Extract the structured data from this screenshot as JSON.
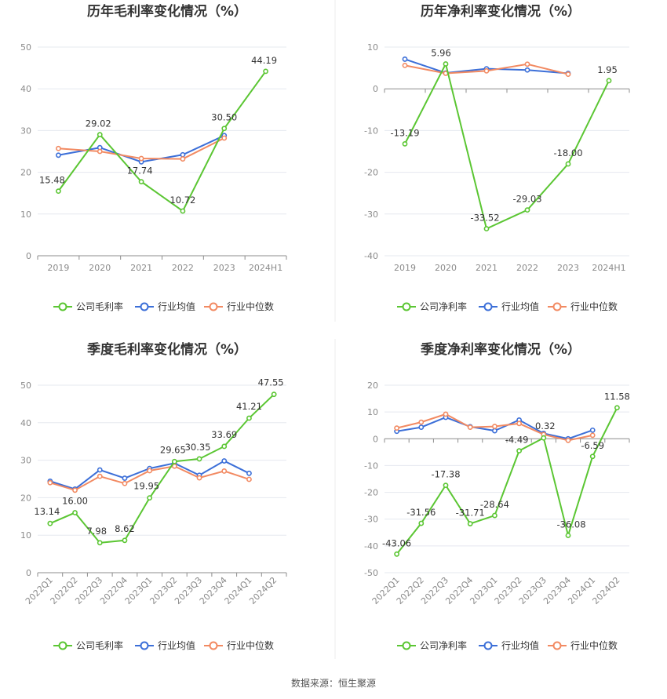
{
  "colors": {
    "company": "#5bc633",
    "avg": "#3c6fd8",
    "median": "#f28a62",
    "grid": "#e5e8ef",
    "axis": "#8c8c8c"
  },
  "legend_labels": {
    "gross": [
      "公司毛利率",
      "行业均值",
      "行业中位数"
    ],
    "net": [
      "公司净利率",
      "行业均值",
      "行业中位数"
    ]
  },
  "source": "数据来源：恒生聚源",
  "chart_data": [
    {
      "type": "line",
      "title": "历年毛利率变化情况（%）",
      "categories": [
        "2019",
        "2020",
        "2021",
        "2022",
        "2023",
        "2024H1"
      ],
      "ylim": [
        0,
        50
      ],
      "yticks": [
        0,
        10,
        20,
        30,
        40,
        50
      ],
      "rotate_labels": false,
      "legend_position": "bottom",
      "series": [
        {
          "name": "公司毛利率",
          "role": "company",
          "values": [
            15.48,
            29.02,
            17.74,
            10.72,
            30.5,
            44.19
          ],
          "labels": [
            "15.48",
            "29.02",
            "17.74",
            "10.72",
            "30.50",
            "44.19"
          ]
        },
        {
          "name": "行业均值",
          "role": "avg",
          "values": [
            24.1,
            25.9,
            22.5,
            24.2,
            28.8,
            null
          ]
        },
        {
          "name": "行业中位数",
          "role": "median",
          "values": [
            25.7,
            25.0,
            23.3,
            23.2,
            28.2,
            null
          ]
        }
      ]
    },
    {
      "type": "line",
      "title": "历年净利率变化情况（%）",
      "categories": [
        "2019",
        "2020",
        "2021",
        "2022",
        "2023",
        "2024H1"
      ],
      "ylim": [
        -40,
        10
      ],
      "yticks": [
        -40,
        -30,
        -20,
        -10,
        0,
        10
      ],
      "rotate_labels": false,
      "legend_position": "bottom",
      "series": [
        {
          "name": "公司净利率",
          "role": "company",
          "values": [
            -13.19,
            5.96,
            -33.52,
            -29.03,
            -18.0,
            1.95
          ],
          "labels": [
            "-13.19",
            "5.96",
            "-33.52",
            "-29.03",
            "-18.00",
            "1.95"
          ]
        },
        {
          "name": "行业均值",
          "role": "avg",
          "values": [
            7.1,
            3.8,
            4.8,
            4.5,
            3.7,
            null
          ]
        },
        {
          "name": "行业中位数",
          "role": "median",
          "values": [
            5.6,
            3.7,
            4.3,
            5.9,
            3.5,
            null
          ]
        }
      ]
    },
    {
      "type": "line",
      "title": "季度毛利率变化情况（%）",
      "categories": [
        "2022Q1",
        "2022Q2",
        "2022Q3",
        "2022Q4",
        "2023Q1",
        "2023Q2",
        "2023Q3",
        "2023Q4",
        "2024Q1",
        "2024Q2"
      ],
      "ylim": [
        0,
        50
      ],
      "yticks": [
        0,
        10,
        20,
        30,
        40,
        50
      ],
      "rotate_labels": true,
      "legend_position": "bottom",
      "series": [
        {
          "name": "公司毛利率",
          "role": "company",
          "values": [
            13.14,
            16.0,
            7.98,
            8.62,
            19.95,
            29.65,
            30.35,
            33.69,
            41.21,
            47.55
          ],
          "labels": [
            "13.14",
            "16.00",
            "7.98",
            "8.62",
            "19.95",
            "29.65",
            "30.35",
            "33.69",
            "41.21",
            "47.55"
          ]
        },
        {
          "name": "行业均值",
          "role": "avg",
          "values": [
            24.4,
            22.3,
            27.4,
            25.2,
            27.8,
            29.2,
            26.0,
            29.8,
            26.5,
            null
          ]
        },
        {
          "name": "行业中位数",
          "role": "median",
          "values": [
            24.0,
            22.0,
            25.7,
            23.8,
            27.2,
            28.4,
            25.3,
            27.1,
            24.9,
            null
          ]
        }
      ]
    },
    {
      "type": "line",
      "title": "季度净利率变化情况（%）",
      "categories": [
        "2022Q1",
        "2022Q2",
        "2022Q3",
        "2022Q4",
        "2023Q1",
        "2023Q2",
        "2023Q3",
        "2023Q4",
        "2024Q1",
        "2024Q2"
      ],
      "ylim": [
        -50,
        20
      ],
      "yticks": [
        -50,
        -40,
        -30,
        -20,
        -10,
        0,
        10,
        20
      ],
      "rotate_labels": true,
      "legend_position": "bottom",
      "series": [
        {
          "name": "公司净利率",
          "role": "company",
          "values": [
            -43.06,
            -31.56,
            -17.38,
            -31.71,
            -28.64,
            -4.49,
            0.32,
            -36.08,
            -6.59,
            11.58
          ],
          "labels": [
            "-43.06",
            "-31.56",
            "-17.38",
            "-31.71",
            "-28.64",
            "-4.49",
            "0.32",
            "-36.08",
            "-6.59",
            "11.58"
          ]
        },
        {
          "name": "行业均值",
          "role": "avg",
          "values": [
            2.8,
            4.3,
            8.0,
            4.5,
            3.0,
            7.0,
            2.0,
            0.0,
            3.2,
            null
          ]
        },
        {
          "name": "行业中位数",
          "role": "median",
          "values": [
            4.0,
            6.2,
            9.2,
            4.3,
            4.6,
            5.7,
            1.6,
            -0.6,
            1.3,
            null
          ]
        }
      ]
    }
  ]
}
